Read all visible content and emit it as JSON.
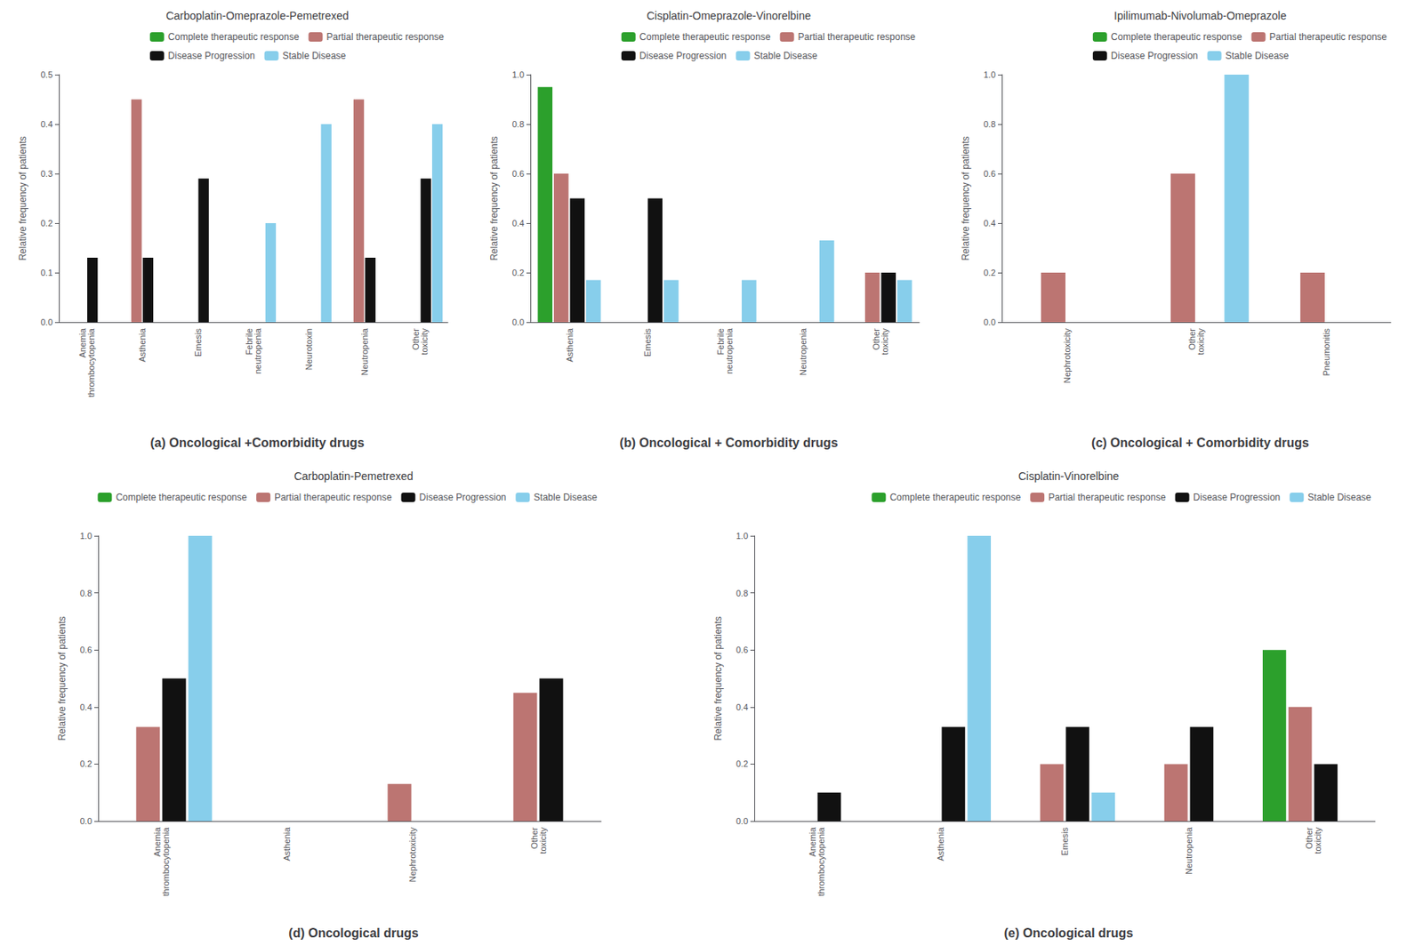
{
  "chart_data": [
    {
      "type": "bar",
      "title": "Carboplatin-Omeprazole-Pemetrexed",
      "categories": [
        "Anemia\nthrombocytopenia",
        "Asthenia",
        "Emesis",
        "Febrile\nneutropenia",
        "Neurotoxin",
        "Neutropenia",
        "Other\ntoxicity"
      ],
      "series": [
        {
          "name": "Complete therapeutic response",
          "color": "#2ca02c",
          "values": [
            0,
            0,
            0,
            0,
            0,
            0,
            0
          ]
        },
        {
          "name": "Partial therapeutic response",
          "color": "#bc7572",
          "values": [
            0,
            0.45,
            0,
            0,
            0,
            0.45,
            0
          ]
        },
        {
          "name": "Disease Progression",
          "color": "#111111",
          "values": [
            0.13,
            0.13,
            0.29,
            0,
            0,
            0.13,
            0.29
          ]
        },
        {
          "name": "Stable Disease",
          "color": "#87ceeb",
          "values": [
            0,
            0,
            0,
            0.2,
            0.4,
            0,
            0.4
          ]
        }
      ],
      "ylabel": "Relative frequency of patients",
      "ylim": [
        0,
        0.5
      ],
      "yticks": [
        {
          "value": 0,
          "label": "0.0"
        },
        0.1,
        0.2,
        0.3,
        0.4,
        0.5
      ],
      "grid": false,
      "legend": "upper right",
      "annotations": [
        "(a) Oncological +Comorbidity drugs"
      ]
    },
    {
      "type": "bar",
      "title": "Cisplatin-Omeprazole-Vinorelbine",
      "categories": [
        "Asthenia",
        "Emesis",
        "Febrile\nneutropenia",
        "Neutropenia",
        "Other\ntoxicity"
      ],
      "series": [
        {
          "name": "Complete therapeutic response",
          "color": "#2ca02c",
          "values": [
            0.95,
            0,
            0,
            0,
            0
          ]
        },
        {
          "name": "Partial therapeutic response",
          "color": "#bc7572",
          "values": [
            0.6,
            0,
            0,
            0,
            0.2
          ]
        },
        {
          "name": "Disease Progression",
          "color": "#111111",
          "values": [
            0.5,
            0.5,
            0,
            0,
            0.2
          ]
        },
        {
          "name": "Stable Disease",
          "color": "#87ceeb",
          "values": [
            0.17,
            0.17,
            0.17,
            0.33,
            0.17
          ]
        }
      ],
      "ylabel": "Relative frequency of patients",
      "ylim": [
        0,
        1.0
      ],
      "yticks": [
        {
          "value": 0,
          "label": "0.0"
        },
        0.2,
        0.4,
        0.6,
        0.8,
        {
          "value": 1,
          "label": "1.0"
        }
      ],
      "grid": false,
      "legend": "upper right",
      "annotations": [
        "(b) Oncological + Comorbidity drugs"
      ]
    },
    {
      "type": "bar",
      "title": "Ipilimumab-Nivolumab-Omeprazole",
      "categories": [
        "Nephrotoxicity",
        "Other\ntoxicity",
        "Pneumonitis"
      ],
      "series": [
        {
          "name": "Complete therapeutic response",
          "color": "#2ca02c",
          "values": [
            0,
            0,
            0
          ]
        },
        {
          "name": "Partial therapeutic response",
          "color": "#bc7572",
          "values": [
            0.2,
            0.6,
            0.2
          ]
        },
        {
          "name": "Disease Progression",
          "color": "#111111",
          "values": [
            0,
            0,
            0
          ]
        },
        {
          "name": "Stable Disease",
          "color": "#87ceeb",
          "values": [
            0,
            1.0,
            0
          ]
        }
      ],
      "ylabel": "Relative frequency of patients",
      "ylim": [
        0,
        1.0
      ],
      "yticks": [
        {
          "value": 0,
          "label": "0.0"
        },
        0.2,
        0.4,
        0.6,
        0.8,
        {
          "value": 1,
          "label": "1.0"
        }
      ],
      "grid": false,
      "legend": "upper right",
      "annotations": [
        "(c) Oncological + Comorbidity drugs"
      ]
    },
    {
      "type": "bar",
      "title": "Carboplatin-Pemetrexed",
      "categories": [
        "Anemia\nthrombocytopenia",
        "Asthenia",
        "Nephrotoxicity",
        "Other\ntoxicity"
      ],
      "series": [
        {
          "name": "Complete therapeutic response",
          "color": "#2ca02c",
          "values": [
            0,
            0,
            0,
            0
          ]
        },
        {
          "name": "Partial therapeutic response",
          "color": "#bc7572",
          "values": [
            0.33,
            0,
            0.13,
            0.45
          ]
        },
        {
          "name": "Disease Progression",
          "color": "#111111",
          "values": [
            0.5,
            0,
            0,
            0.5
          ]
        },
        {
          "name": "Stable Disease",
          "color": "#87ceeb",
          "values": [
            1.0,
            0,
            0,
            0
          ]
        }
      ],
      "ylabel": "Relative frequency of patients",
      "ylim": [
        0,
        1.0
      ],
      "yticks": [
        {
          "value": 0,
          "label": "0.0"
        },
        0.2,
        0.4,
        0.6,
        0.8,
        {
          "value": 1,
          "label": "1.0"
        }
      ],
      "grid": false,
      "legend": "upper right",
      "annotations": [
        "(d) Oncological drugs"
      ]
    },
    {
      "type": "bar",
      "title": "Cisplatin-Vinorelbine",
      "categories": [
        "Anemia\nthrombocytopenia",
        "Asthenia",
        "Emesis",
        "Neutropenia",
        "Other\ntoxicity"
      ],
      "series": [
        {
          "name": "Complete therapeutic response",
          "color": "#2ca02c",
          "values": [
            0,
            0,
            0,
            0,
            0.6
          ]
        },
        {
          "name": "Partial therapeutic response",
          "color": "#bc7572",
          "values": [
            0,
            0,
            0.2,
            0.2,
            0.4
          ]
        },
        {
          "name": "Disease Progression",
          "color": "#111111",
          "values": [
            0.1,
            0.33,
            0.33,
            0.33,
            0.2
          ]
        },
        {
          "name": "Stable Disease",
          "color": "#87ceeb",
          "values": [
            0,
            1.0,
            0.1,
            0,
            0
          ]
        }
      ],
      "ylabel": "Relative frequency of patients",
      "ylim": [
        0,
        1.0
      ],
      "yticks": [
        {
          "value": 0,
          "label": "0.0"
        },
        0.2,
        0.4,
        0.6,
        0.8,
        {
          "value": 1,
          "label": "1.0"
        }
      ],
      "grid": false,
      "legend": "upper right",
      "annotations": [
        "(e) Oncological drugs"
      ]
    }
  ]
}
